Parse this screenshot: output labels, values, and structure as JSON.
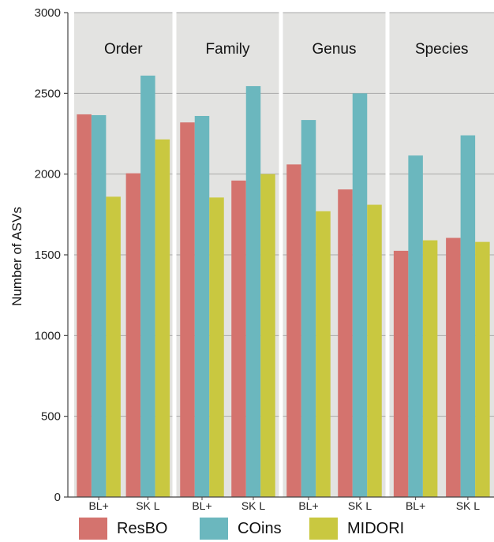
{
  "chart_data": {
    "type": "bar",
    "ylabel": "Number of ASVs",
    "xlabel": "",
    "ylim": [
      0,
      3000
    ],
    "yticks": [
      0,
      500,
      1000,
      1500,
      2000,
      2500,
      3000
    ],
    "grid": true,
    "facets": [
      "Order",
      "Family",
      "Genus",
      "Species"
    ],
    "categories": [
      "BL+",
      "SK L"
    ],
    "series": [
      {
        "name": "ResBO",
        "color": "#d4736e",
        "values": [
          [
            2370,
            2005
          ],
          [
            2320,
            1960
          ],
          [
            2060,
            1905
          ],
          [
            1525,
            1605
          ]
        ]
      },
      {
        "name": "COins",
        "color": "#6bb7be",
        "values": [
          [
            2365,
            2610
          ],
          [
            2360,
            2545
          ],
          [
            2335,
            2500
          ],
          [
            2115,
            2240
          ]
        ]
      },
      {
        "name": "MIDORI",
        "color": "#c9c840",
        "values": [
          [
            1860,
            2215
          ],
          [
            1855,
            2000
          ],
          [
            1770,
            1810
          ],
          [
            1590,
            1580
          ]
        ]
      }
    ],
    "legend_position": "bottom",
    "panel_color": "#e3e3e1"
  }
}
